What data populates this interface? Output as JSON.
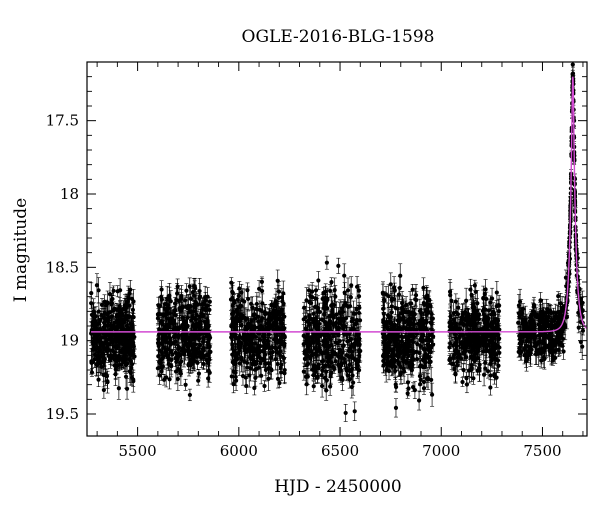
{
  "chart_data": {
    "type": "scatter",
    "title": "OGLE-2016-BLG-1598",
    "xlabel": "HJD - 2450000",
    "ylabel": "I magnitude",
    "xlim": [
      5250,
      7720
    ],
    "ylim": [
      19.65,
      17.1
    ],
    "y_inverted": true,
    "x_ticks": [
      5500,
      6000,
      6500,
      7000,
      7500
    ],
    "y_ticks": [
      17.5,
      18,
      18.5,
      19,
      19.5
    ],
    "x_tick_labels": [
      "5500",
      "6000",
      "6500",
      "7000",
      "7500"
    ],
    "y_tick_labels": [
      "17.5",
      "18",
      "18.5",
      "19",
      "19.5"
    ],
    "grid": false,
    "legend": "none",
    "colors": {
      "points": "#000000",
      "model": "#d24bd2"
    },
    "series": [
      {
        "kind": "points_with_errorbars",
        "seasons": [
          {
            "x_range": [
              5270,
              5485
            ],
            "y_center": 18.98,
            "y_spread": 0.26
          },
          {
            "x_range": [
              5600,
              5860
            ],
            "y_center": 18.95,
            "y_spread": 0.26
          },
          {
            "x_range": [
              5960,
              6230
            ],
            "y_center": 18.97,
            "y_spread": 0.28
          },
          {
            "x_range": [
              6320,
              6600
            ],
            "y_center": 18.99,
            "y_spread": 0.3
          },
          {
            "x_range": [
              6710,
              6960
            ],
            "y_center": 18.99,
            "y_spread": 0.3
          },
          {
            "x_range": [
              7040,
              7290
            ],
            "y_center": 18.97,
            "y_spread": 0.24
          },
          {
            "x_range": [
              7380,
              7700
            ],
            "y_center": 18.95,
            "y_spread": 0.22
          }
        ],
        "event": {
          "t0": 7650,
          "peak_mag": 17.2,
          "baseline": 18.94
        }
      },
      {
        "kind": "model_curve",
        "baseline": 18.94,
        "t0": 7650,
        "peak_mag": 17.2,
        "tE": 25,
        "u0": 0.2
      }
    ]
  }
}
